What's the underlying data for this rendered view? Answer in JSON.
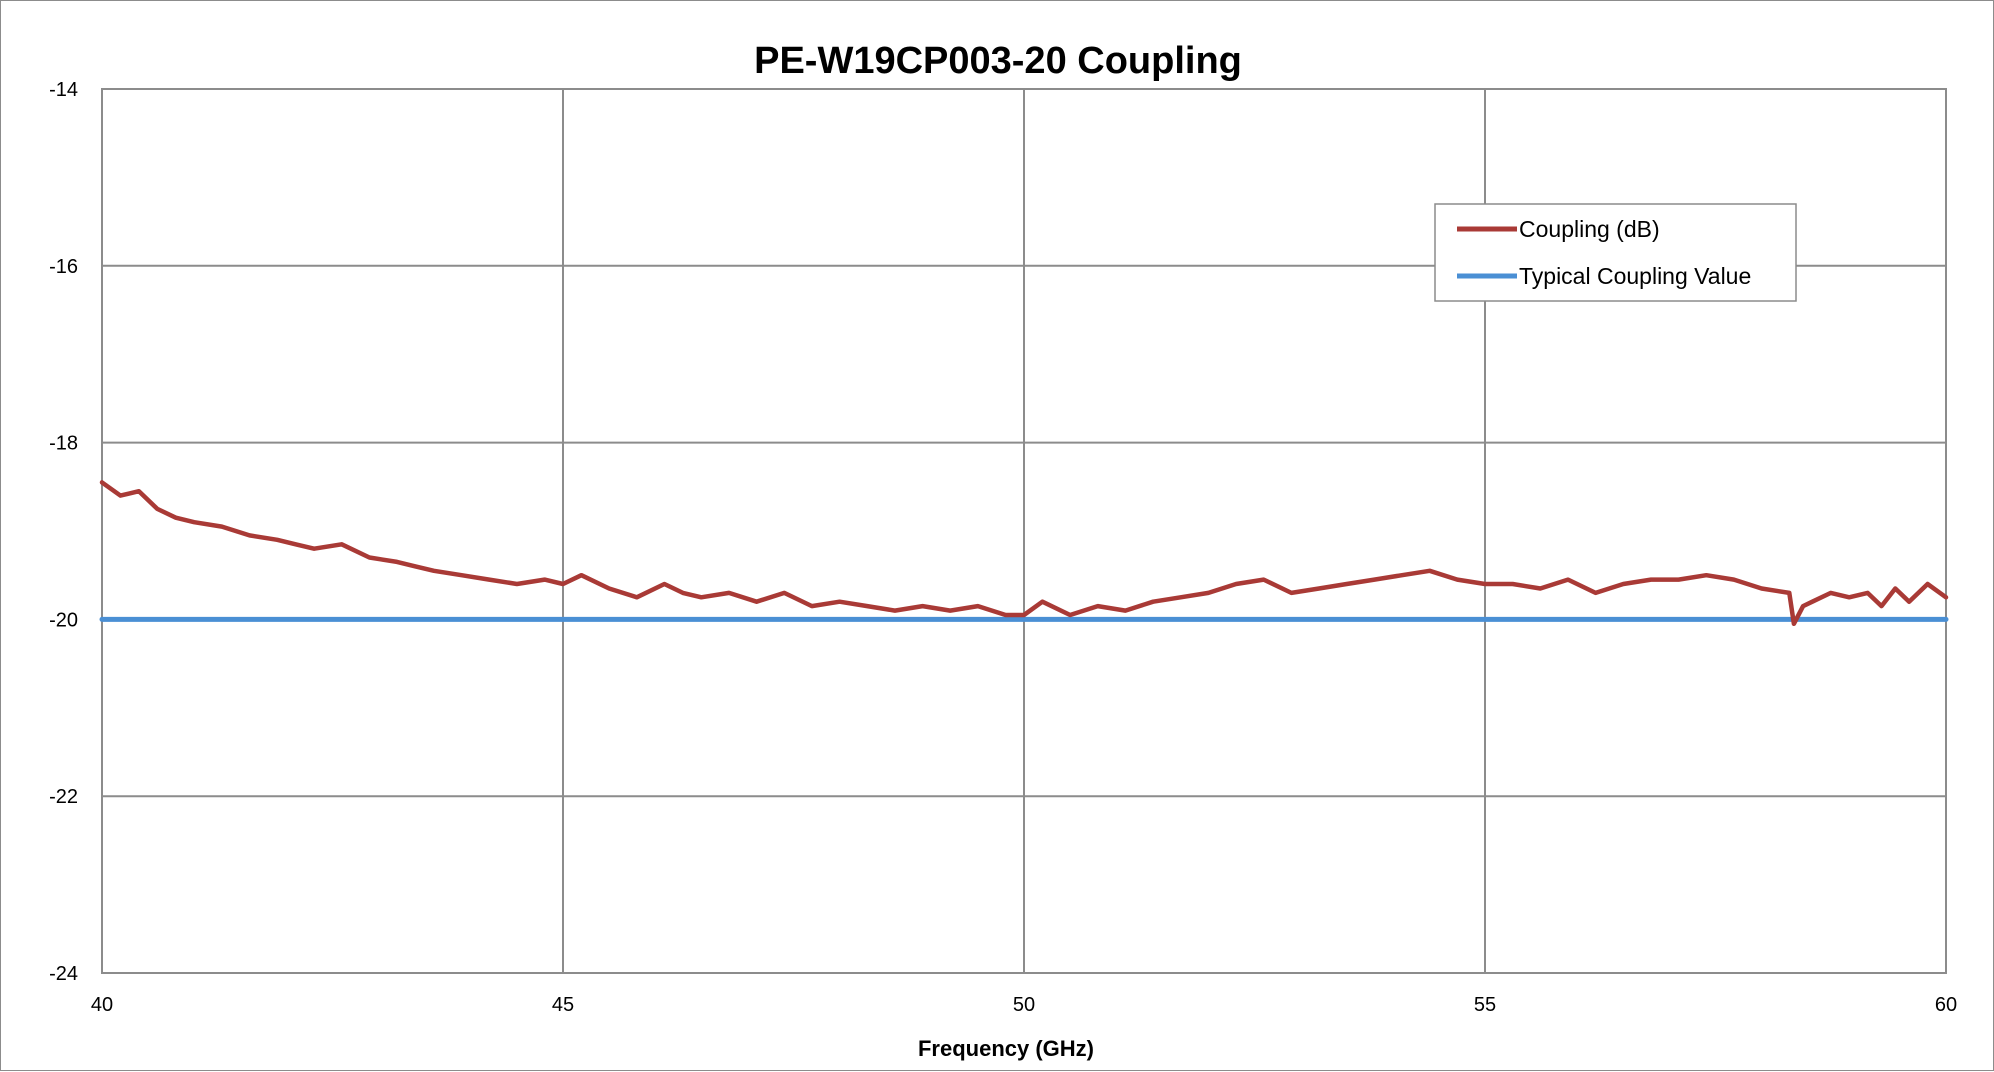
{
  "chart_data": {
    "type": "line",
    "title": "PE-W19CP003-20 Coupling",
    "xlabel": "Frequency (GHz)",
    "ylabel": "",
    "xlim": [
      40,
      60
    ],
    "ylim": [
      -24,
      -14
    ],
    "x_ticks": [
      40,
      45,
      50,
      55,
      60
    ],
    "y_ticks": [
      -24,
      -22,
      -20,
      -18,
      -16,
      -14
    ],
    "grid": true,
    "legend_position": "top-right",
    "series": [
      {
        "name": "Coupling (dB)",
        "color": "#a93a36",
        "x": [
          40.0,
          40.2,
          40.4,
          40.6,
          40.8,
          41.0,
          41.3,
          41.6,
          41.9,
          42.1,
          42.3,
          42.6,
          42.9,
          43.2,
          43.4,
          43.6,
          43.9,
          44.2,
          44.5,
          44.8,
          45.0,
          45.2,
          45.5,
          45.8,
          46.1,
          46.3,
          46.5,
          46.8,
          47.1,
          47.4,
          47.7,
          48.0,
          48.3,
          48.6,
          48.9,
          49.2,
          49.5,
          49.8,
          50.0,
          50.2,
          50.5,
          50.8,
          51.1,
          51.4,
          51.7,
          52.0,
          52.3,
          52.6,
          52.9,
          53.2,
          53.5,
          53.8,
          54.1,
          54.4,
          54.7,
          55.0,
          55.3,
          55.6,
          55.9,
          56.2,
          56.5,
          56.8,
          57.1,
          57.4,
          57.7,
          58.0,
          58.3,
          58.35,
          58.45,
          58.55,
          58.75,
          58.95,
          59.15,
          59.3,
          59.45,
          59.6,
          59.8,
          60.0
        ],
        "y": [
          -18.45,
          -18.6,
          -18.55,
          -18.75,
          -18.85,
          -18.9,
          -18.95,
          -19.05,
          -19.1,
          -19.15,
          -19.2,
          -19.15,
          -19.3,
          -19.35,
          -19.4,
          -19.45,
          -19.5,
          -19.55,
          -19.6,
          -19.55,
          -19.6,
          -19.5,
          -19.65,
          -19.75,
          -19.6,
          -19.7,
          -19.75,
          -19.7,
          -19.8,
          -19.7,
          -19.85,
          -19.8,
          -19.85,
          -19.9,
          -19.85,
          -19.9,
          -19.85,
          -19.95,
          -19.95,
          -19.8,
          -19.95,
          -19.85,
          -19.9,
          -19.8,
          -19.75,
          -19.7,
          -19.6,
          -19.55,
          -19.7,
          -19.65,
          -19.6,
          -19.55,
          -19.5,
          -19.45,
          -19.55,
          -19.6,
          -19.6,
          -19.65,
          -19.55,
          -19.7,
          -19.6,
          -19.55,
          -19.55,
          -19.5,
          -19.55,
          -19.65,
          -19.7,
          -20.05,
          -19.85,
          -19.8,
          -19.7,
          -19.75,
          -19.7,
          -19.85,
          -19.65,
          -19.8,
          -19.6,
          -19.75
        ]
      },
      {
        "name": "Typical Coupling Value",
        "color": "#4a8fd4",
        "x": [
          40,
          60
        ],
        "y": [
          -20,
          -20
        ]
      }
    ]
  }
}
